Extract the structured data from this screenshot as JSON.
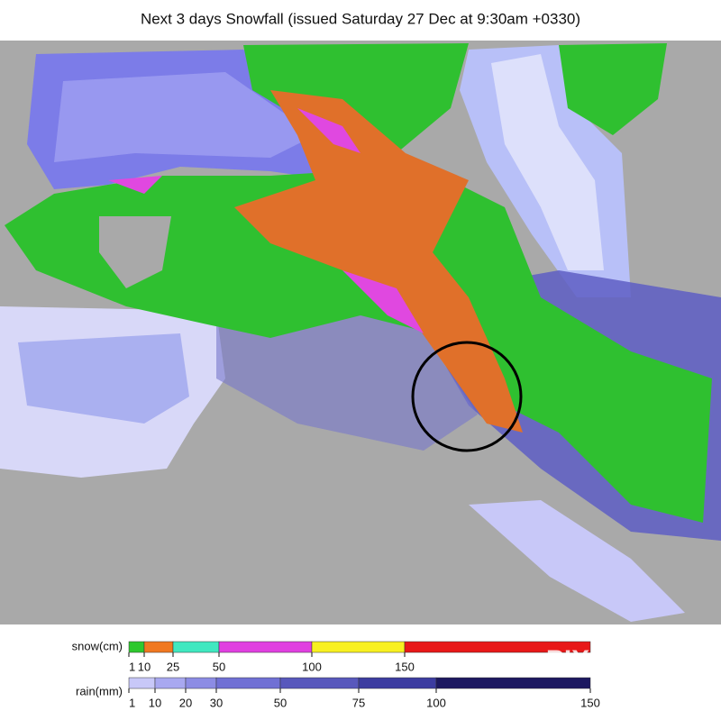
{
  "title": "Next 3 days Snowfall (issued Saturday 27 Dec at 9:30am +0330)",
  "legend": {
    "snow": {
      "label": "snow(cm)",
      "ticks": [
        1,
        10,
        25,
        50,
        100,
        150
      ],
      "colors": [
        "#2ec82e",
        "#f07820",
        "#40e8c0",
        "#e040e0",
        "#f8f020",
        "#e81818"
      ]
    },
    "rain": {
      "label": "rain(mm)",
      "ticks": [
        1,
        10,
        20,
        30,
        50,
        75,
        100,
        150
      ],
      "colors": [
        "#c8c8f8",
        "#a8a8f0",
        "#8c8ce4",
        "#7070d4",
        "#5858bc",
        "#3c3ca0",
        "#1c1860"
      ]
    }
  },
  "watermark": "PIXELEAP"
}
